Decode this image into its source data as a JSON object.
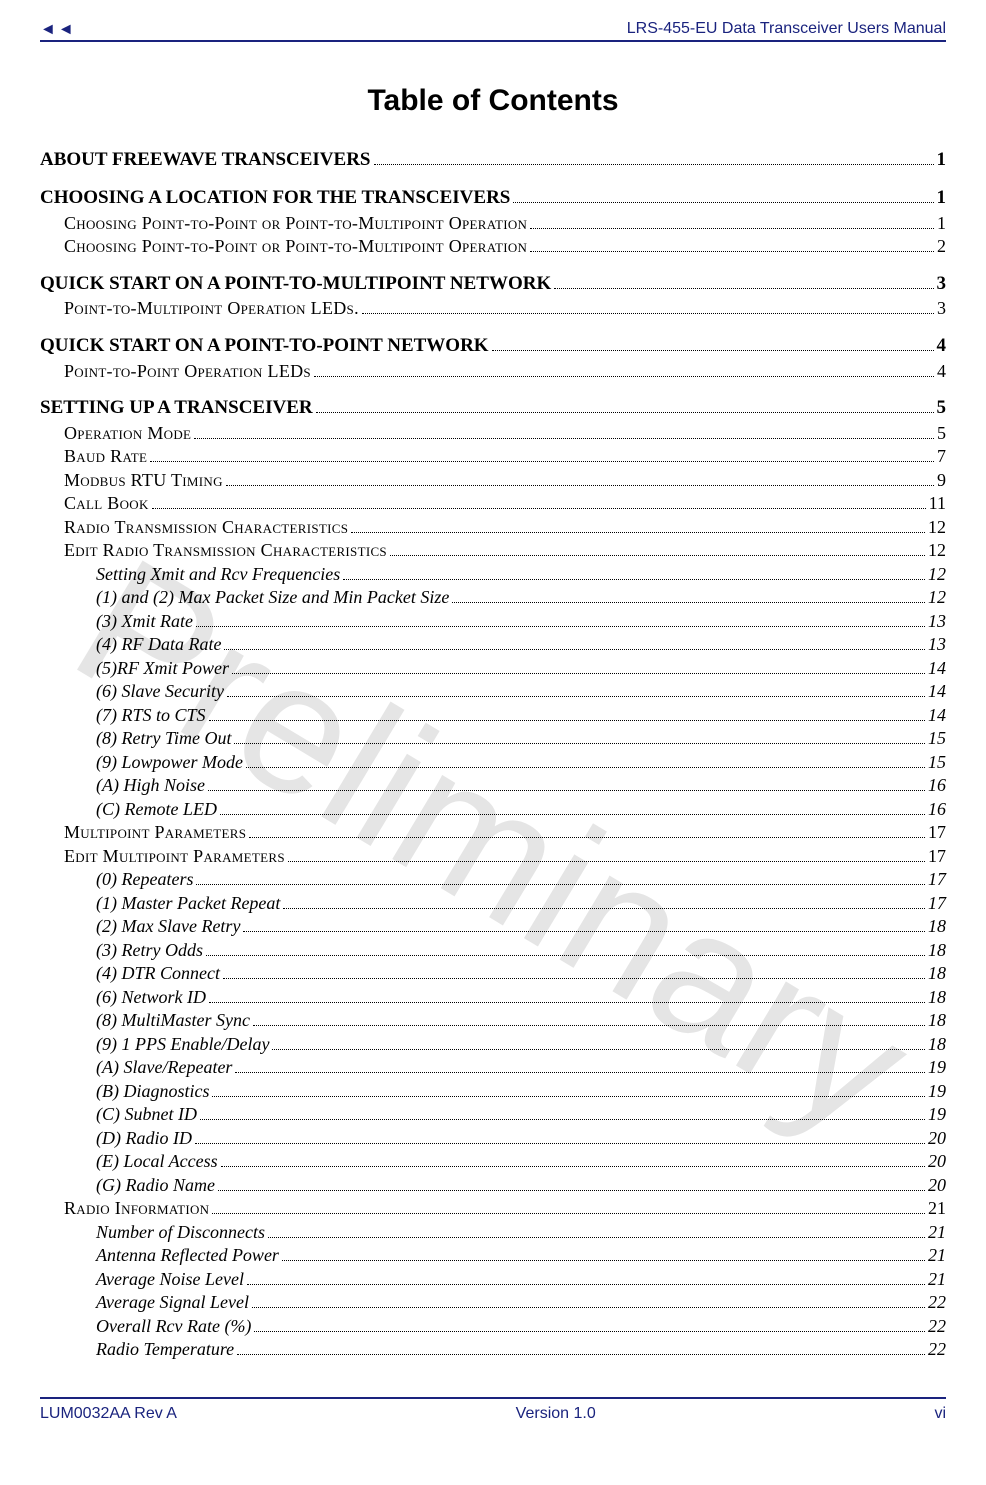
{
  "header": {
    "title_right": "LRS-455-EU Data Transceiver Users Manual"
  },
  "title": "Table of Contents",
  "watermark": "Preliminary",
  "footer": {
    "left": "LUM0032AA Rev A",
    "center": "Version 1.0",
    "right": "vi"
  },
  "colors": {
    "accent": "#1a237e",
    "text": "#000000",
    "watermark": "rgba(0,0,0,0.10)",
    "background": "#ffffff"
  },
  "typography": {
    "title_font": "Arial",
    "title_size_pt": 22,
    "body_font": "Times New Roman",
    "h1_size_pt": 14,
    "h2_size_pt": 13,
    "h3_size_pt": 13,
    "header_footer_font": "Arial",
    "header_footer_size_pt": 12,
    "watermark_size_pt": 140,
    "watermark_rotation_deg": 31
  },
  "toc": [
    {
      "level": 1,
      "label": "ABOUT FREEWAVE TRANSCEIVERS",
      "page": "1"
    },
    {
      "level": 1,
      "label": "CHOOSING A LOCATION FOR THE TRANSCEIVERS",
      "page": "1"
    },
    {
      "level": 2,
      "label": "Choosing Point-to-Point or Point-to-Multipoint Operation",
      "page": "1"
    },
    {
      "level": 2,
      "label": "Choosing Point-to-Point or Point-to-Multipoint Operation",
      "page": "2"
    },
    {
      "level": 1,
      "label": "QUICK START ON A POINT-TO-MULTIPOINT NETWORK",
      "page": "3"
    },
    {
      "level": 2,
      "label": "Point-to-Multipoint Operation LEDs.",
      "page": "3"
    },
    {
      "level": 1,
      "label": "QUICK START ON A POINT-TO-POINT NETWORK",
      "page": "4"
    },
    {
      "level": 2,
      "label": "Point-to-Point Operation LEDs",
      "page": "4"
    },
    {
      "level": 1,
      "label": "SETTING UP A TRANSCEIVER",
      "page": "5"
    },
    {
      "level": 2,
      "label": "Operation Mode",
      "page": "5"
    },
    {
      "level": 2,
      "label": "Baud Rate",
      "page": "7"
    },
    {
      "level": 2,
      "label": "Modbus RTU Timing",
      "page": "9"
    },
    {
      "level": 2,
      "label": "Call Book",
      "page": "11"
    },
    {
      "level": 2,
      "label": "Radio Transmission Characteristics",
      "page": "12"
    },
    {
      "level": 2,
      "label": "Edit Radio Transmission Characteristics",
      "page": "12"
    },
    {
      "level": 3,
      "label": "Setting Xmit and Rcv Frequencies",
      "page": "12"
    },
    {
      "level": 3,
      "label": "(1) and (2) Max Packet Size and Min Packet Size",
      "page": "12"
    },
    {
      "level": 3,
      "label": "(3) Xmit Rate",
      "page": "13"
    },
    {
      "level": 3,
      "label": "(4) RF Data Rate",
      "page": "13"
    },
    {
      "level": 3,
      "label": "(5)RF Xmit Power",
      "page": "14"
    },
    {
      "level": 3,
      "label": "(6) Slave Security",
      "page": "14"
    },
    {
      "level": 3,
      "label": "(7) RTS to CTS",
      "page": "14"
    },
    {
      "level": 3,
      "label": "(8) Retry Time Out",
      "page": "15"
    },
    {
      "level": 3,
      "label": "(9) Lowpower Mode",
      "page": "15"
    },
    {
      "level": 3,
      "label": "(A) High Noise",
      "page": "16"
    },
    {
      "level": 3,
      "label": "(C) Remote LED",
      "page": "16"
    },
    {
      "level": 2,
      "label": "Multipoint Parameters",
      "page": "17"
    },
    {
      "level": 2,
      "label": "Edit Multipoint Parameters",
      "page": "17"
    },
    {
      "level": 3,
      "label": "(0) Repeaters",
      "page": "17"
    },
    {
      "level": 3,
      "label": "(1) Master Packet Repeat",
      "page": "17"
    },
    {
      "level": 3,
      "label": "(2) Max Slave Retry",
      "page": "18"
    },
    {
      "level": 3,
      "label": "(3) Retry Odds",
      "page": "18"
    },
    {
      "level": 3,
      "label": "(4) DTR Connect",
      "page": "18"
    },
    {
      "level": 3,
      "label": "(6) Network ID",
      "page": "18"
    },
    {
      "level": 3,
      "label": "(8) MultiMaster Sync",
      "page": "18"
    },
    {
      "level": 3,
      "label": "(9) 1 PPS Enable/Delay",
      "page": "18"
    },
    {
      "level": 3,
      "label": "(A) Slave/Repeater",
      "page": "19"
    },
    {
      "level": 3,
      "label": "(B) Diagnostics",
      "page": "19"
    },
    {
      "level": 3,
      "label": "(C) Subnet ID",
      "page": "19"
    },
    {
      "level": 3,
      "label": "(D) Radio ID",
      "page": "20"
    },
    {
      "level": 3,
      "label": "(E) Local Access",
      "page": "20"
    },
    {
      "level": 3,
      "label": "(G) Radio Name",
      "page": "20"
    },
    {
      "level": 2,
      "label": "Radio Information",
      "page": "21"
    },
    {
      "level": 3,
      "label": "Number of Disconnects",
      "page": "21"
    },
    {
      "level": 3,
      "label": "Antenna Reflected Power",
      "page": "21"
    },
    {
      "level": 3,
      "label": "Average Noise Level",
      "page": "21"
    },
    {
      "level": 3,
      "label": "Average Signal Level",
      "page": "22"
    },
    {
      "level": 3,
      "label": "Overall Rcv Rate (%)",
      "page": "22"
    },
    {
      "level": 3,
      "label": "Radio Temperature",
      "page": "22"
    }
  ]
}
